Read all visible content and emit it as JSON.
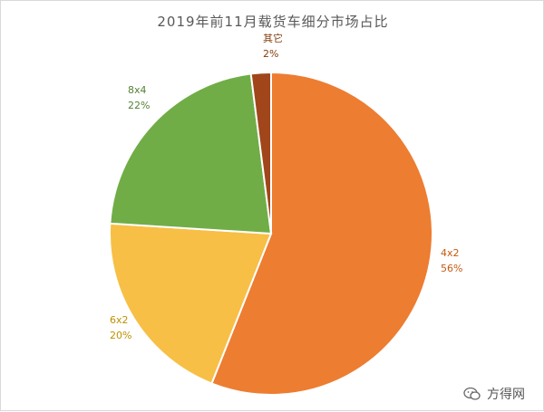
{
  "chart_data": {
    "type": "pie",
    "title": "2019年前11月载货车细分市场占比",
    "slices": [
      {
        "label": "4x2",
        "value": 56,
        "display": "56%",
        "color": "#ED7D31",
        "label_color": "#C55A11"
      },
      {
        "label": "6x2",
        "value": 20,
        "display": "20%",
        "color": "#F7BF45",
        "label_color": "#BF9000"
      },
      {
        "label": "8x4",
        "value": 22,
        "display": "22%",
        "color": "#70AD47",
        "label_color": "#548235"
      },
      {
        "label": "其它",
        "value": 2,
        "display": "2%",
        "color": "#A0461A",
        "label_color": "#843C0C"
      }
    ],
    "legend": "none",
    "start_angle_deg": 0,
    "direction": "clockwise"
  },
  "watermark": {
    "text": "方得网",
    "icon": "wechat-icon"
  }
}
